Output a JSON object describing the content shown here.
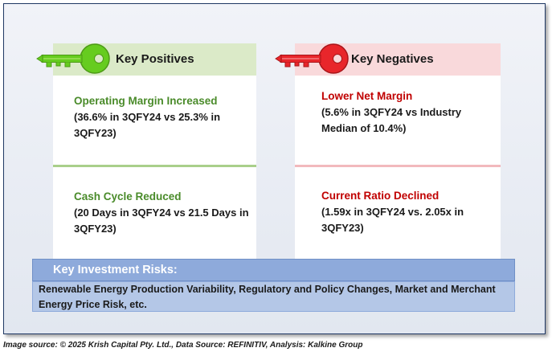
{
  "positives": {
    "header": "Key Positives",
    "items": [
      {
        "title": "Operating Margin Increased",
        "body": "(36.6% in 3QFY24 vs 25.3% in 3QFY23)"
      },
      {
        "title": "Cash Cycle Reduced",
        "body": "(20 Days in 3QFY24 vs 21.5 Days in 3QFY23)"
      }
    ]
  },
  "negatives": {
    "header": "Key Negatives",
    "items": [
      {
        "title": "Lower Net Margin",
        "body": "(5.6% in 3QFY24 vs Industry Median of 10.4%)"
      },
      {
        "title": "Current Ratio Declined",
        "body": "(1.59x in 3QFY24 vs. 2.05x in 3QFY23)"
      }
    ]
  },
  "risks": {
    "header": "Key Investment Risks:",
    "body": "Renewable Energy Production Variability, Regulatory and Policy Changes, Market and Merchant Energy Price Risk, etc."
  },
  "caption": "Image source: © 2025 Krish Capital Pty. Ltd., Data Source: REFINITIV, Analysis: Kalkine Group",
  "colors": {
    "positive_accent": "#4a8b2a",
    "negative_accent": "#c00000",
    "positive_key": "#66cc1f",
    "negative_key": "#e8262b",
    "risk_header_bg": "#8eaadb",
    "risk_body_bg": "#b4c7e7"
  },
  "icons": {
    "positive": "green-key-icon",
    "negative": "red-key-icon"
  }
}
